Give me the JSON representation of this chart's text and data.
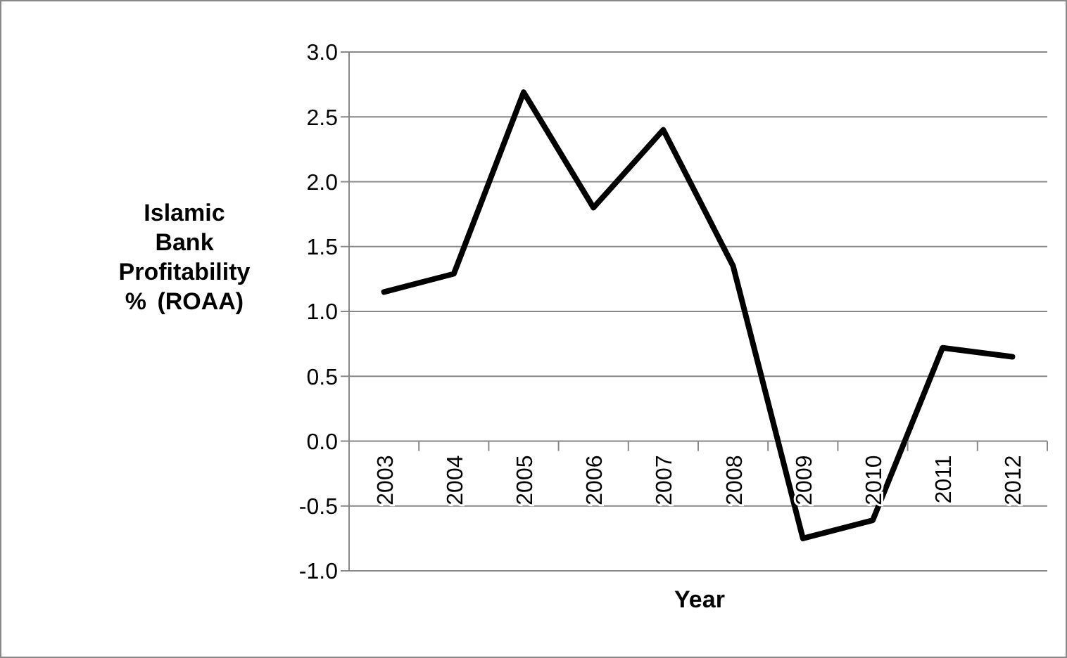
{
  "chart_data": {
    "type": "line",
    "ylabel": "Islamic Bank Profitability %  (ROAA)",
    "xlabel": "Year",
    "categories": [
      "2003",
      "2004",
      "2005",
      "2006",
      "2007",
      "2008",
      "2009",
      "2010",
      "2011",
      "2012"
    ],
    "series": [
      {
        "color": "#000000",
        "values": [
          1.15,
          1.29,
          2.69,
          1.8,
          2.4,
          1.35,
          -0.75,
          -0.61,
          0.72,
          0.65
        ]
      }
    ],
    "ylim": [
      -1.0,
      3.0
    ],
    "yticks": [
      {
        "value": -1,
        "label": "-1.0"
      },
      {
        "value": -0.5,
        "label": "-0.5"
      },
      {
        "value": 0,
        "label": "0.0"
      },
      {
        "value": 0.5,
        "label": "0.5"
      },
      {
        "value": 1,
        "label": "1.0"
      },
      {
        "value": 1.5,
        "label": "1.5"
      },
      {
        "value": 2,
        "label": "2.0"
      },
      {
        "value": 2.5,
        "label": "2.5"
      },
      {
        "value": 3,
        "label": "3.0"
      }
    ],
    "grid": "y",
    "marker": "none",
    "line_style": "solid"
  }
}
